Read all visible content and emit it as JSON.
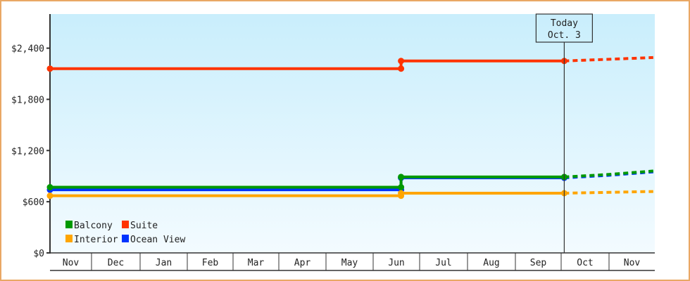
{
  "chart_data": {
    "type": "line",
    "step": true,
    "x_categories": [
      "Nov",
      "Dec",
      "Jan",
      "Feb",
      "Mar",
      "Apr",
      "May",
      "Jun",
      "Jul",
      "Aug",
      "Sep",
      "Oct",
      "Nov"
    ],
    "ylim": [
      0,
      2800
    ],
    "yticks": [
      0,
      600,
      1200,
      1800,
      2400
    ],
    "ytick_labels": [
      "$0",
      "$600",
      "$1,200",
      "$1,800",
      "$2,400"
    ],
    "today_marker": {
      "line1": "Today",
      "line2": "Oct. 3",
      "month_index": 11,
      "day": 3
    },
    "legend": {
      "placement": "bottom-left"
    },
    "background": [
      "#c9eefc",
      "#f3fbff"
    ],
    "series": [
      {
        "name": "Suite",
        "color": "#ff3300",
        "points": [
          [
            0,
            1,
            2160
          ],
          [
            7,
            19,
            2160
          ],
          [
            7,
            19,
            2250
          ],
          [
            11,
            3,
            2250
          ]
        ],
        "forecast": [
          [
            11,
            3,
            2250
          ],
          [
            12,
            1,
            2270
          ],
          [
            12,
            30,
            2290
          ]
        ]
      },
      {
        "name": "Ocean View",
        "color": "#0033ff",
        "points": [
          [
            0,
            1,
            740
          ],
          [
            7,
            19,
            740
          ],
          [
            7,
            19,
            880
          ],
          [
            11,
            3,
            880
          ]
        ],
        "forecast": [
          [
            11,
            3,
            880
          ],
          [
            12,
            1,
            910
          ],
          [
            12,
            30,
            950
          ]
        ]
      },
      {
        "name": "Balcony",
        "color": "#009900",
        "points": [
          [
            0,
            1,
            770
          ],
          [
            7,
            19,
            770
          ],
          [
            7,
            19,
            890
          ],
          [
            11,
            3,
            890
          ]
        ],
        "forecast": [
          [
            11,
            3,
            890
          ],
          [
            12,
            1,
            920
          ],
          [
            12,
            30,
            960
          ]
        ]
      },
      {
        "name": "Interior",
        "color": "#ffa500",
        "points": [
          [
            0,
            1,
            670
          ],
          [
            7,
            19,
            670
          ],
          [
            7,
            19,
            700
          ],
          [
            11,
            3,
            700
          ]
        ],
        "forecast": [
          [
            11,
            3,
            700
          ],
          [
            12,
            1,
            710
          ],
          [
            12,
            30,
            720
          ]
        ]
      }
    ],
    "legend_order": [
      "Balcony",
      "Suite",
      "Interior",
      "Ocean View"
    ]
  }
}
